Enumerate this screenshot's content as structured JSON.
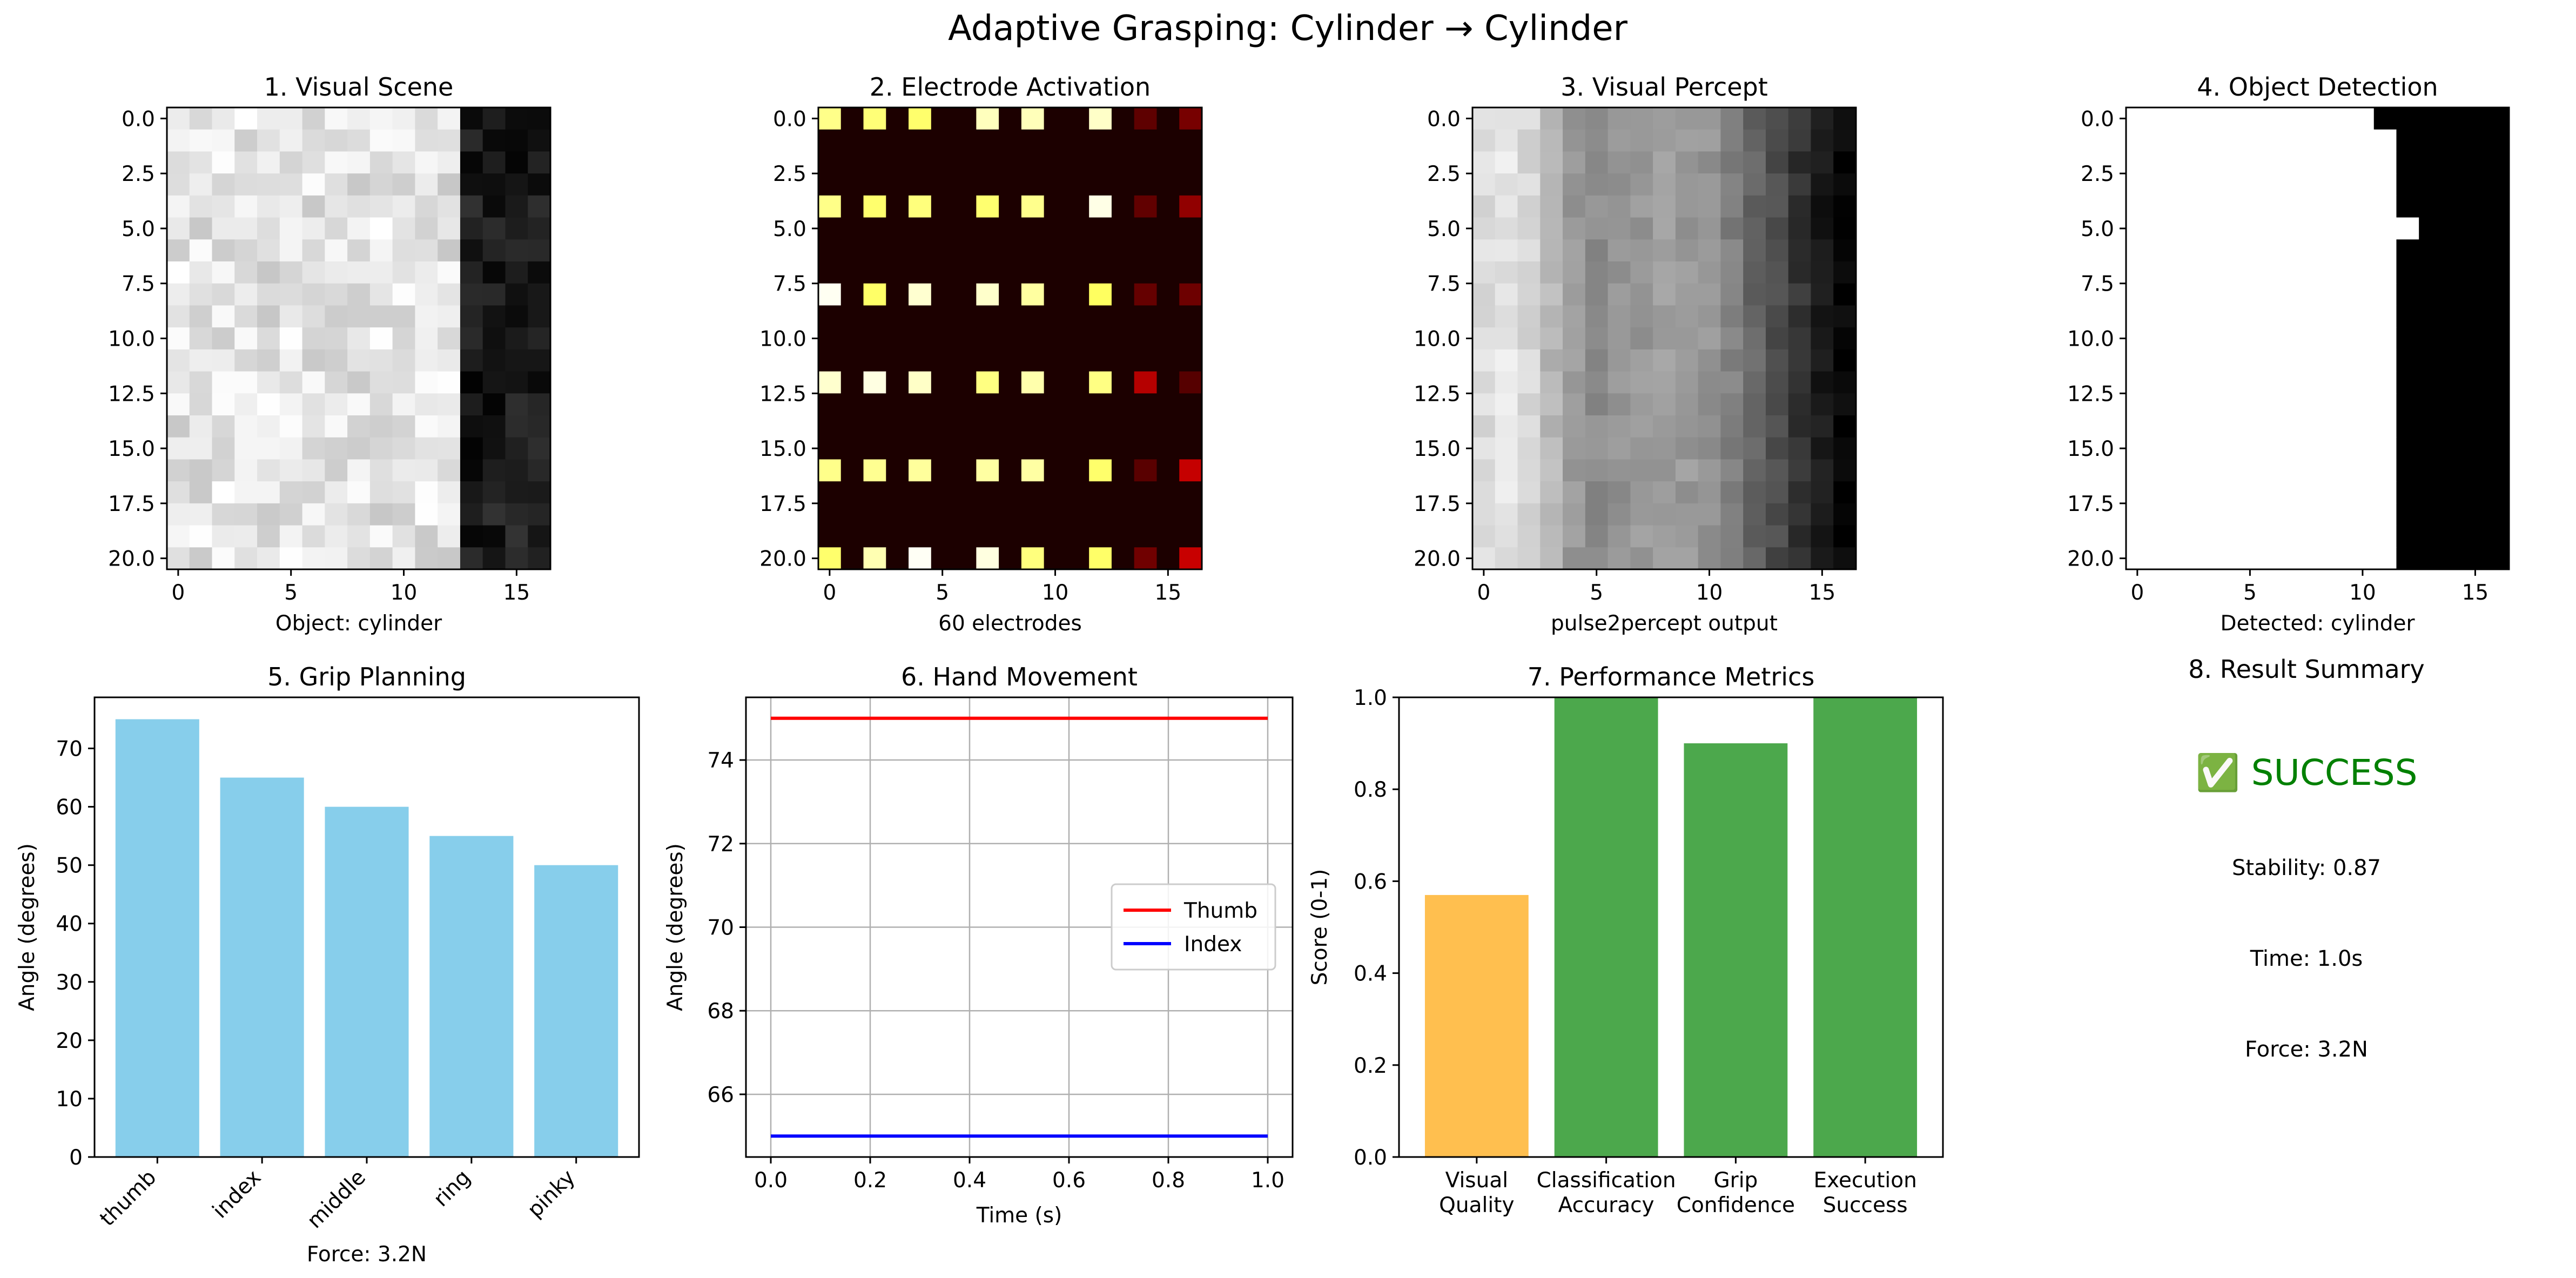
{
  "figure": {
    "title": "Adaptive Grasping: Cylinder → Cylinder"
  },
  "colors": {
    "bar_skyblue": "#87CEEB",
    "bar_orange": "#FFBF4F",
    "bar_green": "#4CA84C",
    "thumb_line": "#FF0000",
    "index_line": "#0000FF",
    "success_text": "#008000",
    "grid": "#B0B0B0"
  },
  "chart_data": [
    {
      "type": "heatmap",
      "title": "1. Visual Scene",
      "xlabel": "Object: cylinder",
      "ylabel": "",
      "colormap": "gray",
      "rows": 21,
      "cols": 17,
      "xticks": [
        "0",
        "5",
        "10",
        "15"
      ],
      "yticks": [
        "0.0",
        "2.5",
        "5.0",
        "7.5",
        "10.0",
        "12.5",
        "15.0",
        "17.5",
        "20.0"
      ],
      "description_values": "bright noisy region columns 0-12 (values ~0.75-1.0), dark region columns 13-16 (values ~0.0-0.2)",
      "grid": false
    },
    {
      "type": "heatmap",
      "title": "2. Electrode Activation",
      "xlabel": "60 electrodes",
      "ylabel": "",
      "colormap": "hot",
      "rows": 21,
      "cols": 17,
      "xticks": [
        "0",
        "5",
        "10",
        "15"
      ],
      "yticks": [
        "0.0",
        "2.5",
        "5.0",
        "7.5",
        "10.0",
        "12.5",
        "15.0",
        "17.5",
        "20.0"
      ],
      "electrode_rows": [
        0,
        4,
        8,
        12,
        16,
        20
      ],
      "electrode_cols": [
        0,
        2,
        4,
        7,
        9,
        12,
        14,
        16
      ],
      "grid": false
    },
    {
      "type": "heatmap",
      "title": "3. Visual Percept",
      "xlabel": "pulse2percept output",
      "ylabel": "",
      "colormap": "gray",
      "rows": 21,
      "cols": 17,
      "xticks": [
        "0",
        "5",
        "10",
        "15"
      ],
      "yticks": [
        "0.0",
        "2.5",
        "5.0",
        "7.5",
        "10.0",
        "12.5",
        "15.0",
        "17.5",
        "20.0"
      ],
      "grid": false
    },
    {
      "type": "heatmap",
      "title": "4. Object Detection",
      "xlabel": "Detected: cylinder",
      "ylabel": "",
      "colormap": "gray",
      "rows": 21,
      "cols": 17,
      "xticks": [
        "0",
        "5",
        "10",
        "15"
      ],
      "yticks": [
        "0.0",
        "2.5",
        "5.0",
        "7.5",
        "10.0",
        "12.5",
        "15.0",
        "17.5",
        "20.0"
      ],
      "mask_boundary_col": 12,
      "grid": false
    },
    {
      "type": "bar",
      "title": "5. Grip Planning",
      "categories": [
        "thumb",
        "index",
        "middle",
        "ring",
        "pinky"
      ],
      "values": [
        75,
        65,
        60,
        55,
        50
      ],
      "xlabel": "Force: 3.2N",
      "ylabel": "Angle (degrees)",
      "ylim": [
        0,
        78.75
      ],
      "yticks": [
        "0",
        "10",
        "20",
        "30",
        "40",
        "50",
        "60",
        "70"
      ],
      "grid": false
    },
    {
      "type": "line",
      "title": "6. Hand Movement",
      "x": [
        0.0,
        0.2,
        0.4,
        0.6,
        0.8,
        1.0
      ],
      "series": [
        {
          "name": "Thumb",
          "values": [
            75,
            75,
            75,
            75,
            75,
            75
          ]
        },
        {
          "name": "Index",
          "values": [
            65,
            65,
            65,
            65,
            65,
            65
          ]
        }
      ],
      "xlabel": "Time (s)",
      "ylabel": "Angle (degrees)",
      "xlim": [
        -0.05,
        1.05
      ],
      "ylim": [
        64.5,
        75.5
      ],
      "xticks": [
        "0.0",
        "0.2",
        "0.4",
        "0.6",
        "0.8",
        "1.0"
      ],
      "yticks": [
        "66",
        "68",
        "70",
        "72",
        "74"
      ],
      "legend": "center-right",
      "grid": true
    },
    {
      "type": "bar",
      "title": "7. Performance Metrics",
      "categories": [
        [
          "Visual",
          "Quality"
        ],
        [
          "Classification",
          "Accuracy"
        ],
        [
          "Grip",
          "Confidence"
        ],
        [
          "Execution",
          "Success"
        ]
      ],
      "values": [
        0.57,
        1.0,
        0.9,
        1.0
      ],
      "xlabel": "",
      "ylabel": "Score (0-1)",
      "ylim": [
        0,
        1
      ],
      "yticks": [
        "0.0",
        "0.2",
        "0.4",
        "0.6",
        "0.8",
        "1.0"
      ],
      "grid": false
    }
  ],
  "summary": {
    "title": "8. Result Summary",
    "status": "✅ SUCCESS",
    "stability": "Stability: 0.87",
    "time": "Time: 1.0s",
    "force": "Force: 3.2N"
  }
}
